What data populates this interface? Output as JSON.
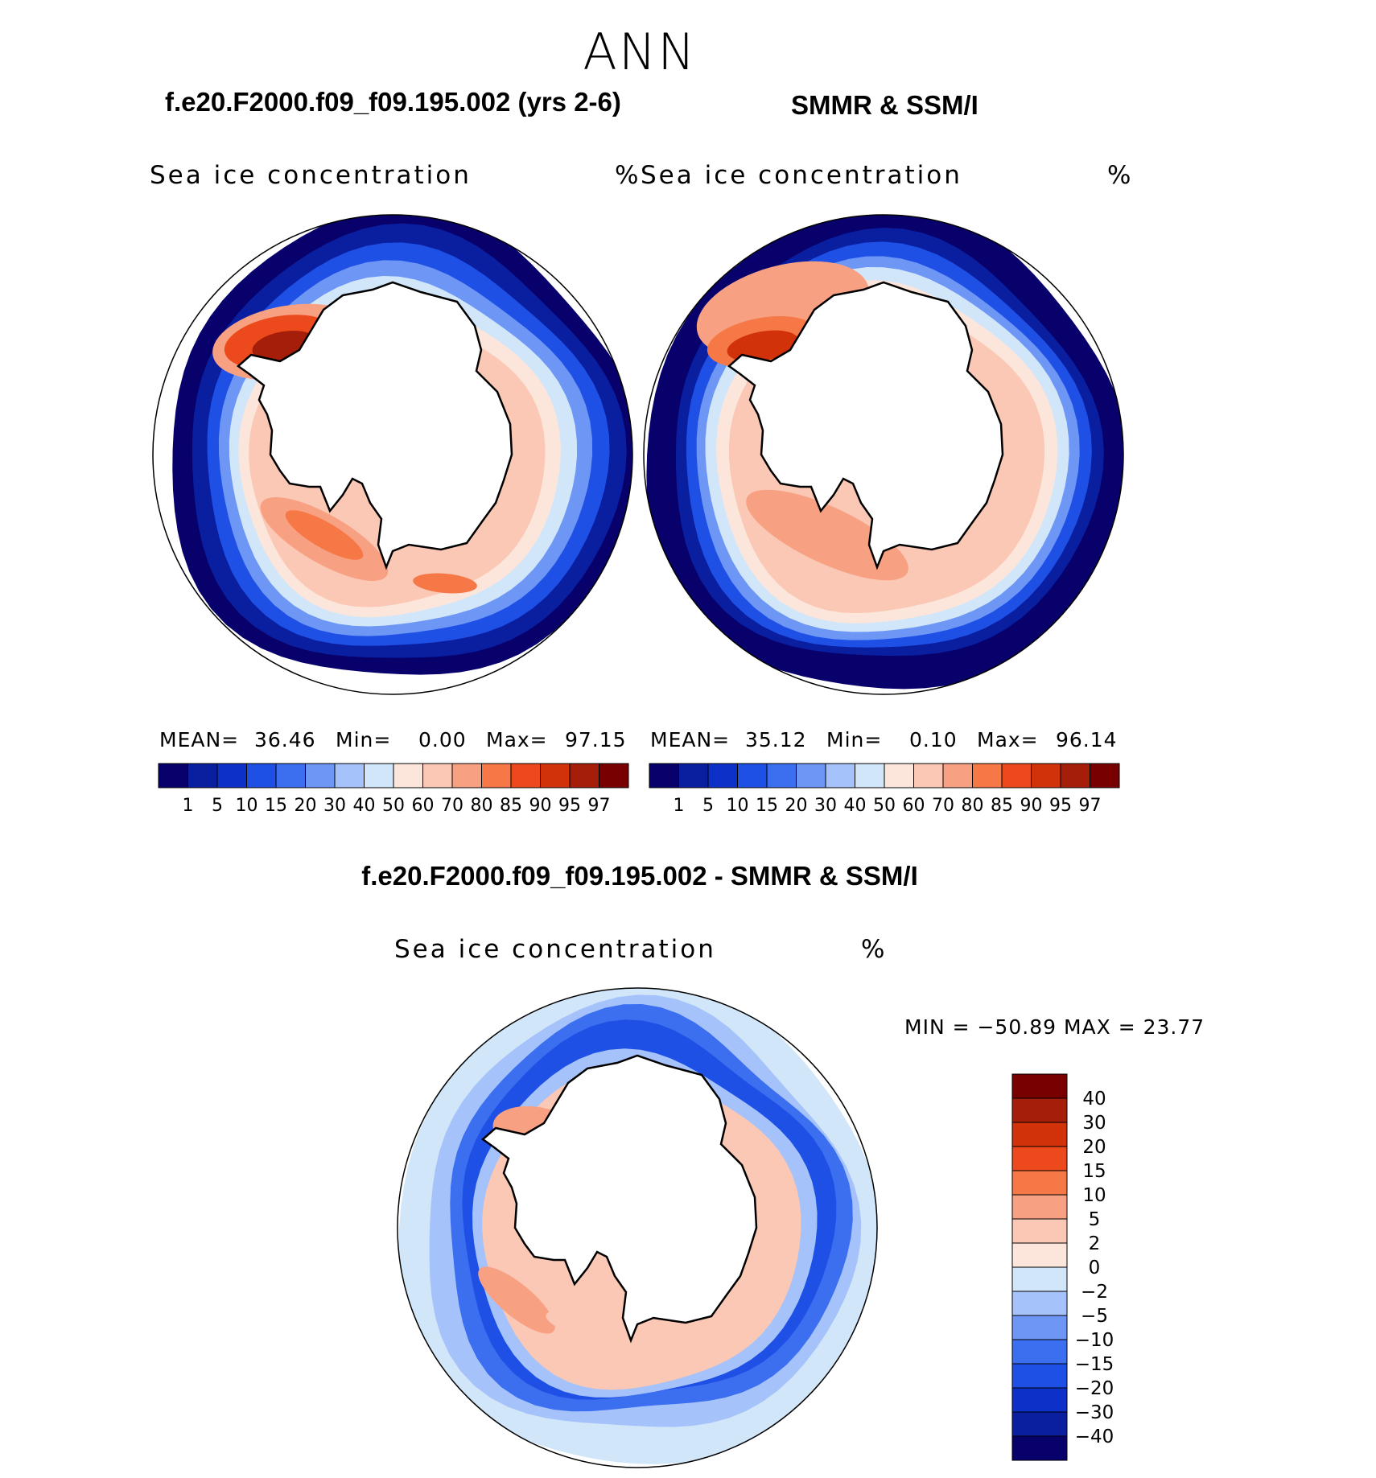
{
  "season": "ANN",
  "panels": {
    "model": {
      "title": "f.e20.F2000.f09_f09.195.002 (yrs 2-6)",
      "field_label": "Sea ice concentration",
      "units": "%",
      "stats": {
        "mean_label": "MEAN=",
        "mean": "36.46",
        "min_label": "Min=",
        "min": "0.00",
        "max_label": "Max=",
        "max": "97.15"
      }
    },
    "obs": {
      "title": "SMMR & SSM/I",
      "field_label": "Sea ice concentration",
      "units": "%",
      "stats": {
        "mean_label": "MEAN=",
        "mean": "35.12",
        "min_label": "Min=",
        "min": "0.10",
        "max_label": "Max=",
        "max": "96.14"
      }
    },
    "diff": {
      "title": "f.e20.F2000.f09_f09.195.002 - SMMR & SSM/I",
      "field_label": "Sea ice concentration",
      "units": "%",
      "minmax_text": "MIN = −50.89 MAX =   23.77"
    }
  },
  "chart_data": [
    {
      "type": "heatmap",
      "projection": "south polar stereographic",
      "title": "f.e20.F2000.f09_f09.195.002 (yrs 2-6)",
      "variable": "Sea ice concentration",
      "units": "%",
      "mean": 36.46,
      "min": 0.0,
      "max": 97.15,
      "colorbar": {
        "levels": [
          "1",
          "5",
          "10",
          "15",
          "20",
          "30",
          "40",
          "50",
          "60",
          "70",
          "80",
          "85",
          "90",
          "95",
          "97"
        ],
        "colors": [
          "#08006b",
          "#0a1ea0",
          "#0d31c8",
          "#1e50e6",
          "#3c6ef0",
          "#6e96f5",
          "#a5c3fa",
          "#d2e6fa",
          "#fce6dc",
          "#fac8b4",
          "#f8a082",
          "#f57846",
          "#ec4a1c",
          "#d2320a",
          "#a51e0a",
          "#780000"
        ]
      }
    },
    {
      "type": "heatmap",
      "projection": "south polar stereographic",
      "title": "SMMR & SSM/I",
      "variable": "Sea ice concentration",
      "units": "%",
      "mean": 35.12,
      "min": 0.1,
      "max": 96.14,
      "colorbar": {
        "levels": [
          "1",
          "5",
          "10",
          "15",
          "20",
          "30",
          "40",
          "50",
          "60",
          "70",
          "80",
          "85",
          "90",
          "95",
          "97"
        ],
        "colors": [
          "#08006b",
          "#0a1ea0",
          "#0d31c8",
          "#1e50e6",
          "#3c6ef0",
          "#6e96f5",
          "#a5c3fa",
          "#d2e6fa",
          "#fce6dc",
          "#fac8b4",
          "#f8a082",
          "#f57846",
          "#ec4a1c",
          "#d2320a",
          "#a51e0a",
          "#780000"
        ]
      }
    },
    {
      "type": "heatmap",
      "projection": "south polar stereographic",
      "title": "f.e20.F2000.f09_f09.195.002 - SMMR & SSM/I",
      "variable": "Sea ice concentration",
      "units": "%",
      "min": -50.89,
      "max": 23.77,
      "colorbar": {
        "levels": [
          "40",
          "30",
          "20",
          "15",
          "10",
          "5",
          "2",
          "0",
          "−2",
          "−5",
          "−10",
          "−15",
          "−20",
          "−30",
          "−40"
        ],
        "colors": [
          "#780000",
          "#a51e0a",
          "#d2320a",
          "#ec4a1c",
          "#f57846",
          "#f8a082",
          "#fac8b4",
          "#fce6dc",
          "#d2e6fa",
          "#a5c3fa",
          "#6e96f5",
          "#3c6ef0",
          "#1e50e6",
          "#0d31c8",
          "#0a1ea0",
          "#08006b"
        ]
      }
    }
  ]
}
